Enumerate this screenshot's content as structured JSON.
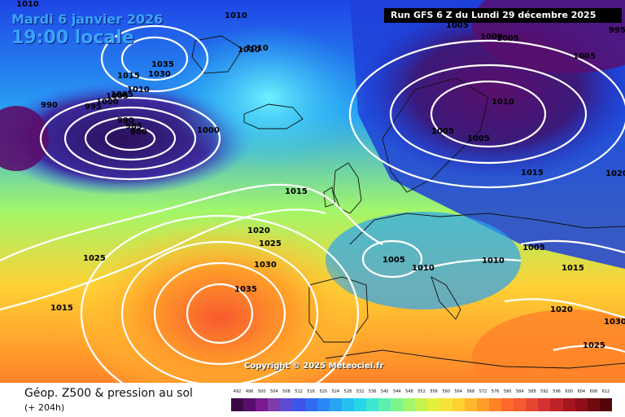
{
  "header": {
    "date": "Mardi 6 janvier 2026",
    "time": "19:00 locale",
    "run": "Run GFS 6 Z du Lundi 29 décembre 2025"
  },
  "map": {
    "copyright": "Copyright © 2025 Meteociel.fr",
    "pressure_labels": [
      "1010",
      "1010",
      "1010",
      "1005",
      "1005",
      "1000",
      "995",
      "1005",
      "1035",
      "1030",
      "1015",
      "1010",
      "1005",
      "1000",
      "995",
      "990",
      "990",
      "985",
      "980",
      "1000",
      "1015",
      "1020",
      "1025",
      "1030",
      "1035",
      "1025",
      "1015",
      "1010",
      "1005",
      "1005",
      "1015",
      "1010",
      "1005",
      "1005",
      "1015",
      "1010",
      "1020",
      "1030",
      "1025",
      "1020",
      "1010",
      "1005",
      "1015"
    ],
    "colors": {
      "isobar": "#ffffff",
      "low_center": "#3b0a45",
      "high_center": "#ff6a2b"
    }
  },
  "legend": {
    "title": "Géop. Z500 & pression au sol",
    "subtitle": "(+ 204h)",
    "scale_values": [
      "492",
      "496",
      "500",
      "504",
      "508",
      "512",
      "516",
      "520",
      "524",
      "528",
      "532",
      "536",
      "540",
      "544",
      "548",
      "552",
      "556",
      "560",
      "564",
      "568",
      "572",
      "576",
      "580",
      "584",
      "588",
      "592",
      "596",
      "600",
      "604",
      "608",
      "612"
    ],
    "scale_colors": [
      "#3b0a45",
      "#5a0e6b",
      "#7a1a8e",
      "#7e3aa8",
      "#5d4bd0",
      "#3d55e8",
      "#2f6cf2",
      "#2a86f5",
      "#2aa3f4",
      "#26c0f0",
      "#28d6e8",
      "#3ee6d2",
      "#5cf0b0",
      "#7ef58c",
      "#a2f66a",
      "#c6f24e",
      "#e6ee3e",
      "#f7e23a",
      "#ffd034",
      "#ffb82e",
      "#ff9d2a",
      "#ff8229",
      "#ff6a2b",
      "#f75a2e",
      "#e64630",
      "#d23330",
      "#bd2228",
      "#a61620",
      "#8d0e18",
      "#700910",
      "#520508"
    ]
  }
}
